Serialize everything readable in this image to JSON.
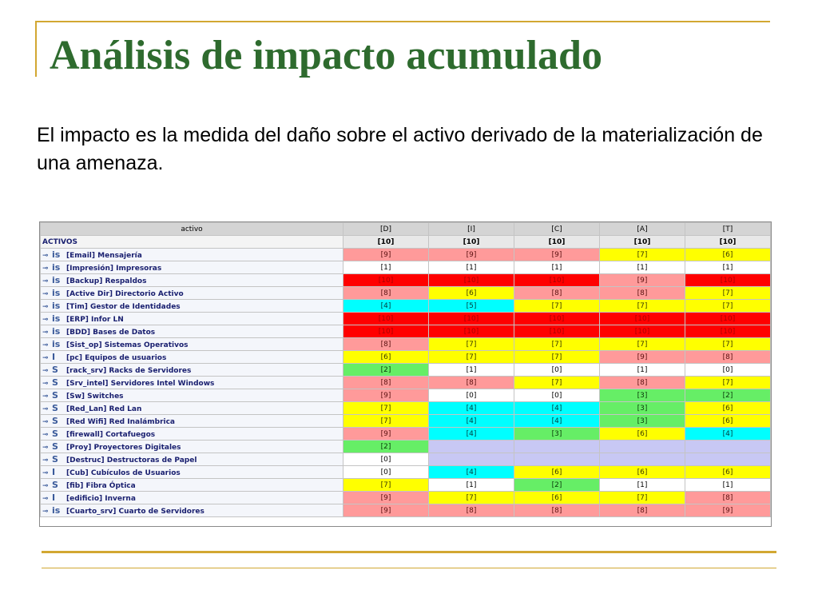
{
  "slide": {
    "title": "Análisis de impacto acumulado",
    "intro": "El impacto es la medida del daño sobre el activo derivado de la materialización de una amenaza."
  },
  "table": {
    "header": [
      "activo",
      "[D]",
      "[I]",
      "[C]",
      "[A]",
      "[T]"
    ],
    "group_row": {
      "label": "ACTIVOS",
      "values": [
        "[10]",
        "[10]",
        "[10]",
        "[10]",
        "[10]"
      ]
    },
    "rows": [
      {
        "icon": "key-icon",
        "type": "is",
        "label": "[Email] Mensajería",
        "values": [
          "[9]",
          "[9]",
          "[9]",
          "[7]",
          "[6]"
        ]
      },
      {
        "icon": "key-icon",
        "type": "is",
        "label": "[Impresión] Impresoras",
        "values": [
          "[1]",
          "[1]",
          "[1]",
          "[1]",
          "[1]"
        ]
      },
      {
        "icon": "key-icon",
        "type": "is",
        "label": "[Backup] Respaldos",
        "values": [
          "[10]",
          "[10]",
          "[10]",
          "[9]",
          "[10]"
        ]
      },
      {
        "icon": "key-icon",
        "type": "is",
        "label": "[Active Dir] Directorio Activo",
        "values": [
          "[8]",
          "[6]",
          "[8]",
          "[8]",
          "[7]"
        ]
      },
      {
        "icon": "key-icon",
        "type": "is",
        "label": "[Tim] Gestor de Identidades",
        "values": [
          "[4]",
          "[5]",
          "[7]",
          "[7]",
          "[7]"
        ]
      },
      {
        "icon": "key-icon",
        "type": "is",
        "label": "[ERP] Infor LN",
        "values": [
          "[10]",
          "[10]",
          "[10]",
          "[10]",
          "[10]"
        ]
      },
      {
        "icon": "key-icon",
        "type": "is",
        "label": "[BDD] Bases de Datos",
        "values": [
          "[10]",
          "[10]",
          "[10]",
          "[10]",
          "[10]"
        ]
      },
      {
        "icon": "key-icon",
        "type": "is",
        "label": "[Sist_op] Sistemas Operativos",
        "values": [
          "[8]",
          "[7]",
          "[7]",
          "[7]",
          "[7]"
        ]
      },
      {
        "icon": "key-icon",
        "type": "I",
        "label": "[pc] Equipos de usuarios",
        "values": [
          "[6]",
          "[7]",
          "[7]",
          "[9]",
          "[8]"
        ]
      },
      {
        "icon": "key-icon",
        "type": "S",
        "label": "[rack_srv] Racks de Servidores",
        "values": [
          "[2]",
          "[1]",
          "[0]",
          "[1]",
          "[0]"
        ]
      },
      {
        "icon": "key-icon",
        "type": "S",
        "label": "[Srv_intel] Servidores Intel Windows",
        "values": [
          "[8]",
          "[8]",
          "[7]",
          "[8]",
          "[7]"
        ]
      },
      {
        "icon": "key-icon",
        "type": "S",
        "label": "[Sw] Switches",
        "values": [
          "[9]",
          "[0]",
          "[0]",
          "[3]",
          "[2]"
        ]
      },
      {
        "icon": "key-icon",
        "type": "S",
        "label": "[Red_Lan] Red Lan",
        "values": [
          "[7]",
          "[4]",
          "[4]",
          "[3]",
          "[6]"
        ]
      },
      {
        "icon": "key-icon",
        "type": "S",
        "label": "[Red Wifi] Red  Inalámbrica",
        "values": [
          "[7]",
          "[4]",
          "[4]",
          "[3]",
          "[6]"
        ]
      },
      {
        "icon": "key-icon",
        "type": "S",
        "label": "[firewall] Cortafuegos",
        "values": [
          "[9]",
          "[4]",
          "[3]",
          "[6]",
          "[4]"
        ]
      },
      {
        "icon": "key-icon",
        "type": "S",
        "label": "[Proy] Proyectores Digitales",
        "values": [
          "[2]",
          "",
          "",
          "",
          ""
        ]
      },
      {
        "icon": "key-icon",
        "type": "S",
        "label": "[Destruc] Destructoras de Papel",
        "values": [
          "[0]",
          "",
          "",
          "",
          ""
        ]
      },
      {
        "icon": "key-icon",
        "type": "I",
        "label": "[Cub] Cubículos de Usuarios",
        "values": [
          "[0]",
          "[4]",
          "[6]",
          "[6]",
          "[6]"
        ]
      },
      {
        "icon": "key-icon",
        "type": "S",
        "label": "[fib] Fibra Óptica",
        "values": [
          "[7]",
          "[1]",
          "[2]",
          "[1]",
          "[1]"
        ]
      },
      {
        "icon": "key-icon",
        "type": "I",
        "label": "[edificio] Inverna",
        "values": [
          "[9]",
          "[7]",
          "[6]",
          "[7]",
          "[8]"
        ]
      },
      {
        "icon": "key-icon",
        "type": "is",
        "label": "[Cuarto_srv] Cuarto de Servidores",
        "values": [
          "[9]",
          "[8]",
          "[8]",
          "[8]",
          "[9]"
        ]
      }
    ]
  }
}
